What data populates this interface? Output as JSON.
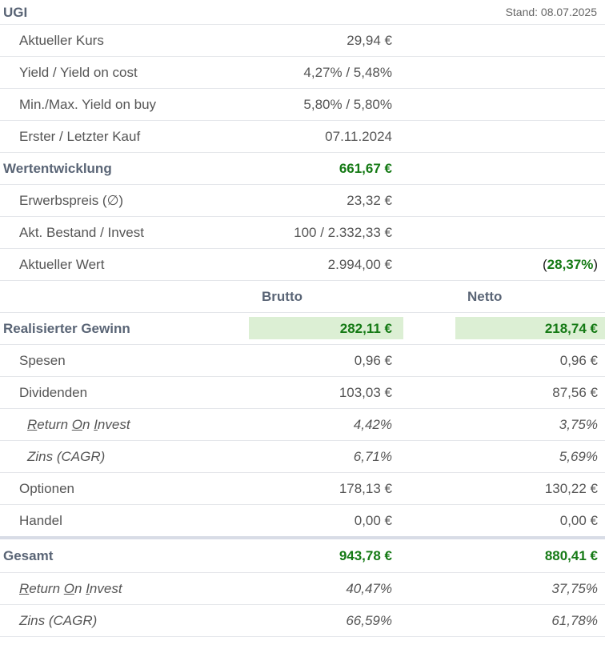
{
  "header": {
    "title": "UGI",
    "stand": "Stand: 08.07.2025"
  },
  "top_rows": [
    {
      "label": "Aktueller Kurs",
      "value": "29,94 €"
    },
    {
      "label": "Yield / Yield on cost",
      "value": "4,27% / 5,48%"
    },
    {
      "label": "Min./Max. Yield on buy",
      "value": "5,80% / 5,80%"
    },
    {
      "label": "Erster / Letzter Kauf",
      "value": "07.11.2024"
    }
  ],
  "wertentwicklung": {
    "label": "Wertentwicklung",
    "value": "661,67 €"
  },
  "mid_rows": [
    {
      "label": "Erwerbspreis (∅)",
      "value": "23,32 €"
    },
    {
      "label": "Akt. Bestand / Invest",
      "value": "100 / 2.332,33 €"
    }
  ],
  "aktueller_wert": {
    "label": "Aktueller Wert",
    "value": "2.994,00 €",
    "pct_open": "(",
    "pct": "28,37%",
    "pct_close": ")"
  },
  "columns": {
    "brutto": "Brutto",
    "netto": "Netto"
  },
  "realisiert": {
    "label": "Realisierter Gewinn",
    "brutto": "282,11 €",
    "netto": "218,74 €"
  },
  "spesen": {
    "label": "Spesen",
    "brutto": "0,96 €",
    "netto": "0,96 €"
  },
  "dividenden": {
    "label": "Dividenden",
    "brutto": "103,03 €",
    "netto": "87,56 €"
  },
  "div_roi": {
    "l1": "R",
    "l2": "eturn ",
    "l3": "O",
    "l4": "n ",
    "l5": "I",
    "l6": "nvest",
    "brutto": "4,42%",
    "netto": "3,75%"
  },
  "div_cagr": {
    "label": "Zins (CAGR)",
    "brutto": "6,71%",
    "netto": "5,69%"
  },
  "optionen": {
    "label": "Optionen",
    "brutto": "178,13 €",
    "netto": "130,22 €"
  },
  "handel": {
    "label": "Handel",
    "brutto": "0,00 €",
    "netto": "0,00 €"
  },
  "gesamt": {
    "label": "Gesamt",
    "brutto": "943,78 €",
    "netto": "880,41 €"
  },
  "ges_roi": {
    "l1": "R",
    "l2": "eturn ",
    "l3": "O",
    "l4": "n ",
    "l5": "I",
    "l6": "nvest",
    "brutto": "40,47%",
    "netto": "37,75%"
  },
  "ges_cagr": {
    "label": "Zins (CAGR)",
    "brutto": "66,59%",
    "netto": "61,78%"
  },
  "colors": {
    "green": "#157a15",
    "highlight": "#dcefd4",
    "header_text": "#5a6576"
  }
}
